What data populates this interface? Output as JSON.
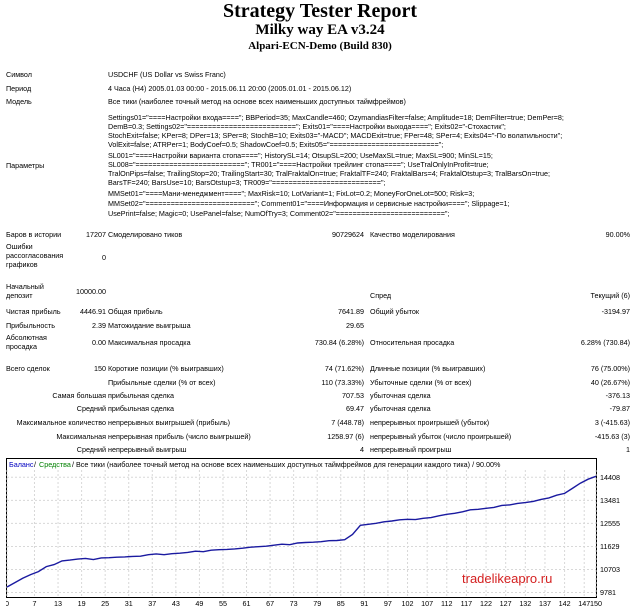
{
  "header": {
    "title": "Strategy Tester Report",
    "subtitle": "Milky way EA v3.24",
    "broker": "Alpari-ECN-Demo (Build 830)"
  },
  "info": {
    "symbol_label": "Символ",
    "symbol_value": "USDCHF (US Dollar vs Swiss Franc)",
    "period_label": "Период",
    "period_value": "4 Часа (H4)  2005.01.03 00:00 - 2015.06.11 20:00 (2005.01.01 - 2015.06.12)",
    "model_label": "Модель",
    "model_value": "Все тики (наиболее точный метод на основе всех наименьших доступных таймфреймов)",
    "params_label": "Параметры",
    "params_lines": [
      "Settings01=\"====Настройки входа====\"; BBPeriod=35; MaxCandle=460; OzymandiasFilter=false; Amplitude=18; DemFilter=true; DemPer=8;",
      "DemB=0.3; Settings02=\"==========================\"; Exits01=\"====Настройки выхода====\"; Exits02=\"-Стохастик\";",
      "StochExit=false; KPer=8; DPer=13; SPer=8; StochB=10; Exits03=\"-MACD\"; MACDExit=true; FPer=48; SPer=4; Exits04=\"-По волатильности\";",
      "VolExit=false; ATRPer=1; BodyCoef=0.5; ShadowCoef=0.5; Exits05=\"==========================\";",
      "SL001=\"====Настройки варианта стопа====\"; HistorySL=14; OtsupSL=200; UseMaxSL=true; MaxSL=900; MinSL=15;",
      "SL008=\"==========================\"; TR001=\"====Настройки трейлинг стопа====\"; UseTralOnlyInProfit=true;",
      "TralOnPips=false; TrailingStop=20; TrailingStart=30; TralFraktalOn=true; FraktalTF=240; FraktalBars=4; FraktalOtstup=3; TralBarsOn=true;",
      "BarsTF=240; BarsUse=10; BarsOtstup=3; TR009=\"==========================\";",
      "MMSet01=\"====Мани-менеджмент====\"; MaxRisk=10; LotVariant=1; FixLot=0.2; MoneyForOneLot=500; Risk=3;",
      "MMSet02=\"==========================\"; Comment01=\"====Информация и сервисные настройки====\"; Slippage=1;",
      "UsePrint=false; Magic=0; UsePanel=false; NumOfTry=3; Comment02=\"==========================\";"
    ]
  },
  "stats": {
    "bars_label": "Баров в истории",
    "bars_value": "17207",
    "ticks_label": "Смоделировано тиков",
    "ticks_value": "90729624",
    "quality_label": "Качество моделирования",
    "quality_value": "90.00%",
    "errors_label": "Ошибки рассогласования графиков",
    "errors_value": "0",
    "deposit_label": "Начальный депозит",
    "deposit_value": "10000.00",
    "spread_label": "Спред",
    "spread_value": "Текущий (6)",
    "net_label": "Чистая прибыль",
    "net_value": "4446.91",
    "gross_profit_label": "Общая прибыль",
    "gross_profit_value": "7641.89",
    "gross_loss_label": "Общий убыток",
    "gross_loss_value": "-3194.97",
    "pf_label": "Прибыльность",
    "pf_value": "2.39",
    "expect_label": "Матожидание выигрыша",
    "expect_value": "29.65",
    "abs_dd_label": "Абсолютная просадка",
    "abs_dd_value": "0.00",
    "max_dd_label": "Максимальная просадка",
    "max_dd_value": "730.84 (6.28%)",
    "rel_dd_label": "Относительная просадка",
    "rel_dd_value": "6.28% (730.84)",
    "total_label": "Всего сделок",
    "total_value": "150",
    "short_label": "Короткие позиции (% выигравших)",
    "short_value": "74 (71.62%)",
    "long_label": "Длинные позиции (% выигравших)",
    "long_value": "76 (75.00%)",
    "profit_trades_label": "Прибыльные сделки (% от всех)",
    "profit_trades_value": "110 (73.33%)",
    "loss_trades_label": "Убыточные сделки (% от всех)",
    "loss_trades_value": "40 (26.67%)",
    "largest_label": "Самая большая",
    "largest_profit_label": "прибыльная сделка",
    "largest_profit_value": "707.53",
    "largest_loss_label": "убыточная сделка",
    "largest_loss_value": "-376.13",
    "average_label": "Средний",
    "average_profit_label": "прибыльная сделка",
    "average_profit_value": "69.47",
    "average_loss_label": "убыточная сделка",
    "average_loss_value": "-79.87",
    "max_label": "Максимальное количество",
    "max_cons_wins_label": "непрерывных выигрышей (прибыль)",
    "max_cons_wins_value": "7 (448.78)",
    "max_cons_losses_label": "непрерывных проигрышей (убыток)",
    "max_cons_losses_value": "3 (-415.63)",
    "maximal_label": "Максимальная",
    "maximal_profit_label": "непрерывная прибыль (число выигрышей)",
    "maximal_profit_value": "1258.97 (6)",
    "maximal_loss_label": "непрерывный убыток (число проигрышей)",
    "maximal_loss_value": "-415.63 (3)",
    "avg_label": "Средний",
    "avg_wins_label": "непрерывный выигрыш",
    "avg_wins_value": "4",
    "avg_losses_label": "непрерывный проигрыш",
    "avg_losses_value": "1"
  },
  "chart_data": {
    "type": "line",
    "legend_balance": "Баланс",
    "legend_funds": "Средства",
    "legend_rest": " / Все тики (наиболее точный метод на основе всех наименьших доступных таймфреймов для генерации каждого тика) / 90.00%",
    "watermark": "tradelikeapro.ru",
    "x_ticks": [
      0,
      7,
      13,
      19,
      25,
      31,
      37,
      43,
      49,
      55,
      61,
      67,
      73,
      79,
      85,
      91,
      97,
      102,
      107,
      112,
      117,
      122,
      127,
      132,
      137,
      142,
      147,
      150
    ],
    "y_ticks": [
      9781,
      10703,
      11629,
      12555,
      13481,
      14408
    ],
    "xlim": [
      0,
      150
    ],
    "ylim": [
      9600,
      14700
    ],
    "x": [
      0,
      2,
      4,
      6,
      8,
      10,
      12,
      14,
      16,
      18,
      20,
      22,
      24,
      26,
      28,
      30,
      32,
      34,
      36,
      38,
      40,
      42,
      44,
      46,
      48,
      50,
      52,
      54,
      56,
      58,
      60,
      62,
      64,
      66,
      68,
      70,
      72,
      74,
      76,
      78,
      80,
      82,
      84,
      86,
      88,
      90,
      92,
      94,
      96,
      98,
      100,
      102,
      104,
      106,
      108,
      110,
      112,
      114,
      116,
      118,
      120,
      122,
      124,
      126,
      128,
      130,
      132,
      134,
      136,
      138,
      140,
      142,
      144,
      146,
      148,
      150
    ],
    "values": [
      10000,
      10180,
      10350,
      10500,
      10620,
      10820,
      10900,
      11050,
      11080,
      11120,
      11150,
      11100,
      11170,
      11180,
      11200,
      11210,
      11230,
      11240,
      11300,
      11330,
      11300,
      11340,
      11360,
      11390,
      11440,
      11420,
      11480,
      11500,
      11510,
      11530,
      11560,
      11600,
      11620,
      11640,
      11680,
      11720,
      11700,
      11770,
      11790,
      11800,
      11820,
      11860,
      11870,
      11900,
      12110,
      12480,
      12520,
      12560,
      12620,
      12650,
      12700,
      12720,
      12710,
      12760,
      12790,
      12860,
      12920,
      12960,
      13020,
      13100,
      13120,
      13160,
      13200,
      13280,
      13300,
      13360,
      13390,
      13440,
      13520,
      13580,
      13690,
      13760,
      13960,
      14170,
      14330,
      14447
    ]
  }
}
